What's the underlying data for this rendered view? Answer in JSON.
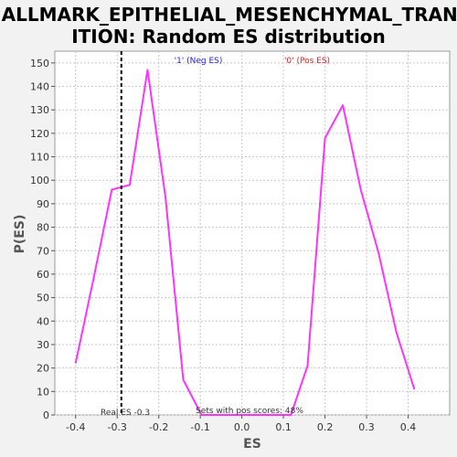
{
  "title_line1": "HALLMARK_EPITHELIAL_MESENCHYMAL_TRANS",
  "title_line2": "ITION: Random ES distribution",
  "colors": {
    "background": "#f2f2f2",
    "plot_bg": "#ffffff",
    "line": "#ff33ff",
    "neg_label": "#2222dd",
    "pos_label": "#dd2222",
    "grid": "#c8c8c8",
    "axis": "#555555",
    "real_es_line": "#000000"
  },
  "chart_data": {
    "type": "line",
    "title": "HALLMARK_EPITHELIAL_MESENCHYMAL_TRANSITION: Random ES distribution",
    "xlabel": "ES",
    "ylabel": "P(ES)",
    "xlim": [
      -0.45,
      0.5
    ],
    "ylim": [
      0,
      155
    ],
    "x_ticks": [
      -0.4,
      -0.3,
      -0.2,
      -0.1,
      0.0,
      0.1,
      0.2,
      0.3,
      0.4
    ],
    "x_tick_labels": [
      "-0.4",
      "-0.3",
      "-0.2",
      "-0.1",
      "0.0",
      "0.1",
      "0.2",
      "0.3",
      "0.4"
    ],
    "y_ticks": [
      0,
      10,
      20,
      30,
      40,
      50,
      60,
      70,
      80,
      90,
      100,
      110,
      120,
      130,
      140,
      150
    ],
    "y_tick_labels": [
      "0",
      "10",
      "20",
      "30",
      "40",
      "50",
      "60",
      "70",
      "80",
      "90",
      "100",
      "110",
      "120",
      "130",
      "140",
      "150"
    ],
    "grid": true,
    "series": [
      {
        "x": [
          -0.4,
          -0.357,
          -0.313,
          -0.27,
          -0.227,
          -0.184,
          -0.141,
          -0.097,
          -0.054,
          -0.011,
          0.032,
          0.075,
          0.118,
          0.158,
          0.2,
          0.243,
          0.286,
          0.329,
          0.372,
          0.415
        ],
        "y": [
          22,
          58,
          96,
          98,
          147,
          93,
          15,
          0,
          0,
          0,
          0,
          0,
          0,
          21,
          118,
          132,
          96,
          69,
          35,
          11
        ]
      }
    ],
    "real_es": -0.29,
    "annotations": {
      "neg_label": "'1' (Neg ES)",
      "pos_label": "'0' (Pos ES)",
      "real_es_label": "Real ES -0.3",
      "pos_scores_label": "Sets with pos scores: 48%"
    }
  }
}
